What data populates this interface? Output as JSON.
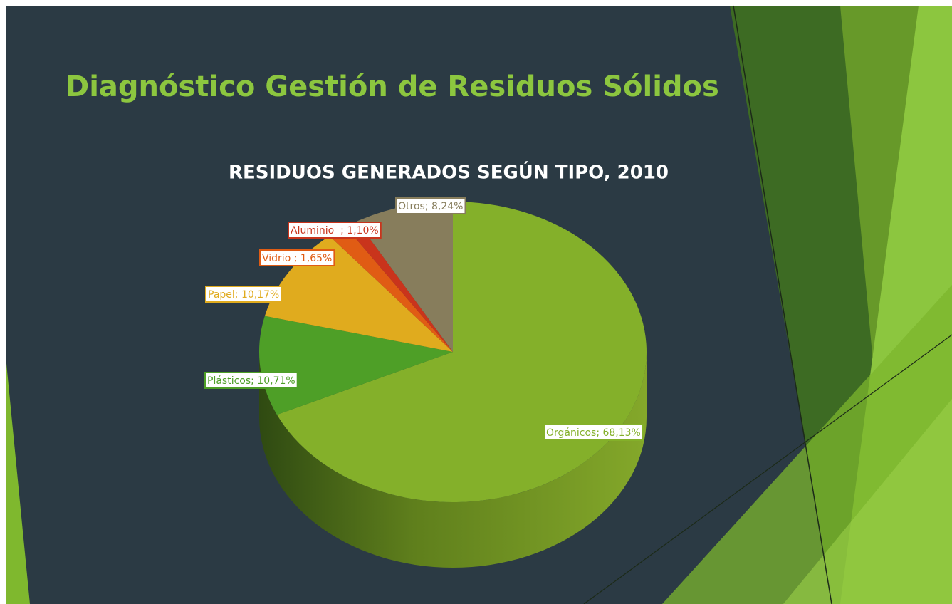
{
  "slide": {
    "title": "Diagnóstico Gestión de Residuos Sólidos"
  },
  "chart_data": {
    "type": "pie",
    "title": "RESIDUOS GENERADOS SEGÚN TIPO, 2010",
    "values": [
      68.13,
      10.71,
      10.17,
      1.65,
      1.1,
      8.24
    ],
    "value_labels": [
      "Orgánicos; 68,13%",
      "Plásticos; 10,71%",
      "Papel; 10,17%",
      "Vidrio ; 1,65%",
      "Aluminio  ; 1,10%",
      "Otros; 8,24%"
    ],
    "colors": [
      "#84b02a",
      "#4e9f27",
      "#e0ab1e",
      "#e05c14",
      "#c9341c",
      "#877d5c"
    ]
  }
}
